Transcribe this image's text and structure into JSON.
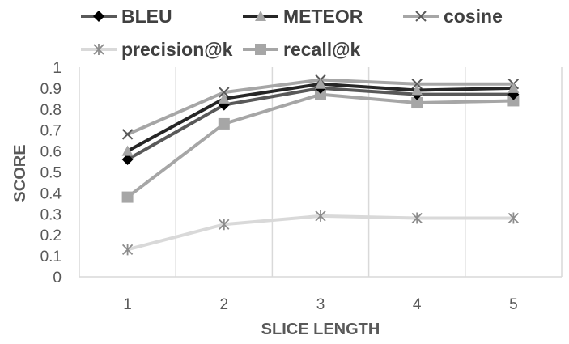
{
  "chart_data": {
    "type": "line",
    "xlabel": "SLICE LENGTH",
    "ylabel": "SCORE",
    "x": [
      1,
      2,
      3,
      4,
      5
    ],
    "ylim": [
      0,
      1
    ],
    "yticks": [
      "0",
      "0.1",
      "0.2",
      "0.3",
      "0.4",
      "0.5",
      "0.6",
      "0.7",
      "0.8",
      "0.9",
      "1"
    ],
    "grid": "vertical",
    "legend": "top",
    "series": [
      {
        "name": "BLEU",
        "values": [
          0.56,
          0.82,
          0.9,
          0.87,
          0.87
        ],
        "color": "#595959",
        "marker": "diamond"
      },
      {
        "name": "METEOR",
        "values": [
          0.6,
          0.85,
          0.92,
          0.89,
          0.9
        ],
        "color": "#262626",
        "marker": "triangle"
      },
      {
        "name": "cosine",
        "values": [
          0.68,
          0.88,
          0.94,
          0.92,
          0.92
        ],
        "color": "#a6a6a6",
        "marker": "x"
      },
      {
        "name": "precision@k",
        "values": [
          0.13,
          0.25,
          0.29,
          0.28,
          0.28
        ],
        "color": "#d9d9d9",
        "marker": "star"
      },
      {
        "name": "recall@k",
        "values": [
          0.38,
          0.73,
          0.87,
          0.83,
          0.84
        ],
        "color": "#a6a6a6",
        "marker": "square"
      }
    ]
  }
}
